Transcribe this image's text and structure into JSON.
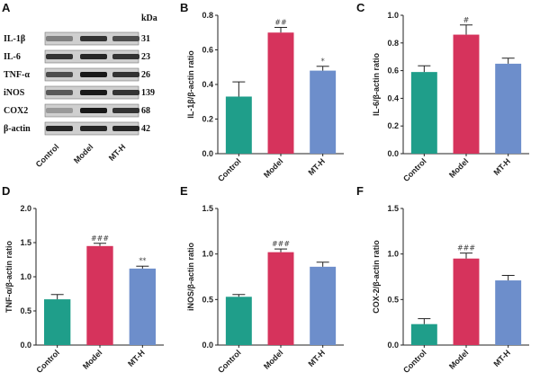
{
  "colors": {
    "control": "#1f9e8a",
    "model": "#d6335c",
    "mth": "#6d8ecb",
    "axis": "#222222"
  },
  "blot": {
    "panel_label": "A",
    "unit_label": "kDa",
    "groups": [
      "Control",
      "Model",
      "MT-H"
    ],
    "bands": [
      {
        "name": "IL-1β",
        "kda": "31",
        "intensity": [
          0.5,
          0.8,
          0.7
        ]
      },
      {
        "name": "IL-6",
        "kda": "23",
        "intensity": [
          0.8,
          0.85,
          0.8
        ]
      },
      {
        "name": "TNF-α",
        "kda": "26",
        "intensity": [
          0.7,
          0.9,
          0.8
        ]
      },
      {
        "name": "iNOS",
        "kda": "139",
        "intensity": [
          0.65,
          0.9,
          0.8
        ]
      },
      {
        "name": "COX2",
        "kda": "68",
        "intensity": [
          0.4,
          0.9,
          0.8
        ]
      },
      {
        "name": "β-actin",
        "kda": "42",
        "intensity": [
          0.85,
          0.85,
          0.85
        ]
      }
    ]
  },
  "chart_data": [
    {
      "panel": "B",
      "type": "bar",
      "categories": [
        "Control",
        "Model",
        "MT-H"
      ],
      "values": [
        0.33,
        0.7,
        0.48
      ],
      "errors": [
        0.085,
        0.03,
        0.025
      ],
      "significance": [
        "",
        "##",
        "*"
      ],
      "ylabel": "IL-1β/β-actin ratio",
      "ylim": [
        0,
        0.8
      ],
      "yticks": [
        0.0,
        0.2,
        0.4,
        0.6,
        0.8
      ],
      "ytick_labels": [
        "0.0",
        "0.2",
        "0.4",
        "0.6",
        "0.8"
      ]
    },
    {
      "panel": "C",
      "type": "bar",
      "categories": [
        "Control",
        "Model",
        "MT-H"
      ],
      "values": [
        0.59,
        0.86,
        0.65
      ],
      "errors": [
        0.045,
        0.07,
        0.04
      ],
      "significance": [
        "",
        "#",
        ""
      ],
      "ylabel": "IL-6/β-actin ratio",
      "ylim": [
        0,
        1.0
      ],
      "yticks": [
        0.0,
        0.2,
        0.4,
        0.6,
        0.8,
        1.0
      ],
      "ytick_labels": [
        "0.0",
        "0.2",
        "0.4",
        "0.6",
        "0.8",
        "1.0"
      ]
    },
    {
      "panel": "D",
      "type": "bar",
      "categories": [
        "Control",
        "Model",
        "MT-H"
      ],
      "values": [
        0.67,
        1.45,
        1.12
      ],
      "errors": [
        0.07,
        0.04,
        0.035
      ],
      "significance": [
        "",
        "###",
        "**"
      ],
      "ylabel": "TNF-α/β-actin ratio",
      "ylim": [
        0,
        2.0
      ],
      "yticks": [
        0.0,
        0.5,
        1.0,
        1.5,
        2.0
      ],
      "ytick_labels": [
        "0.0",
        "0.5",
        "1.0",
        "1.5",
        "2.0"
      ]
    },
    {
      "panel": "E",
      "type": "bar",
      "categories": [
        "Control",
        "Model",
        "MT-H"
      ],
      "values": [
        0.53,
        1.02,
        0.86
      ],
      "errors": [
        0.025,
        0.035,
        0.05
      ],
      "significance": [
        "",
        "###",
        ""
      ],
      "ylabel": "iNOS/β-actin ratio",
      "ylim": [
        0,
        1.5
      ],
      "yticks": [
        0.0,
        0.5,
        1.0,
        1.5
      ],
      "ytick_labels": [
        "0.0",
        "0.5",
        "1.0",
        "1.5"
      ]
    },
    {
      "panel": "F",
      "type": "bar",
      "categories": [
        "Control",
        "Model",
        "MT-H"
      ],
      "values": [
        0.23,
        0.95,
        0.71
      ],
      "errors": [
        0.06,
        0.06,
        0.055
      ],
      "significance": [
        "",
        "###",
        ""
      ],
      "ylabel": "COX-2/β-actin ratio",
      "ylim": [
        0,
        1.5
      ],
      "yticks": [
        0.0,
        0.5,
        1.0,
        1.5
      ],
      "ytick_labels": [
        "0.0",
        "0.5",
        "1.0",
        "1.5"
      ]
    }
  ]
}
